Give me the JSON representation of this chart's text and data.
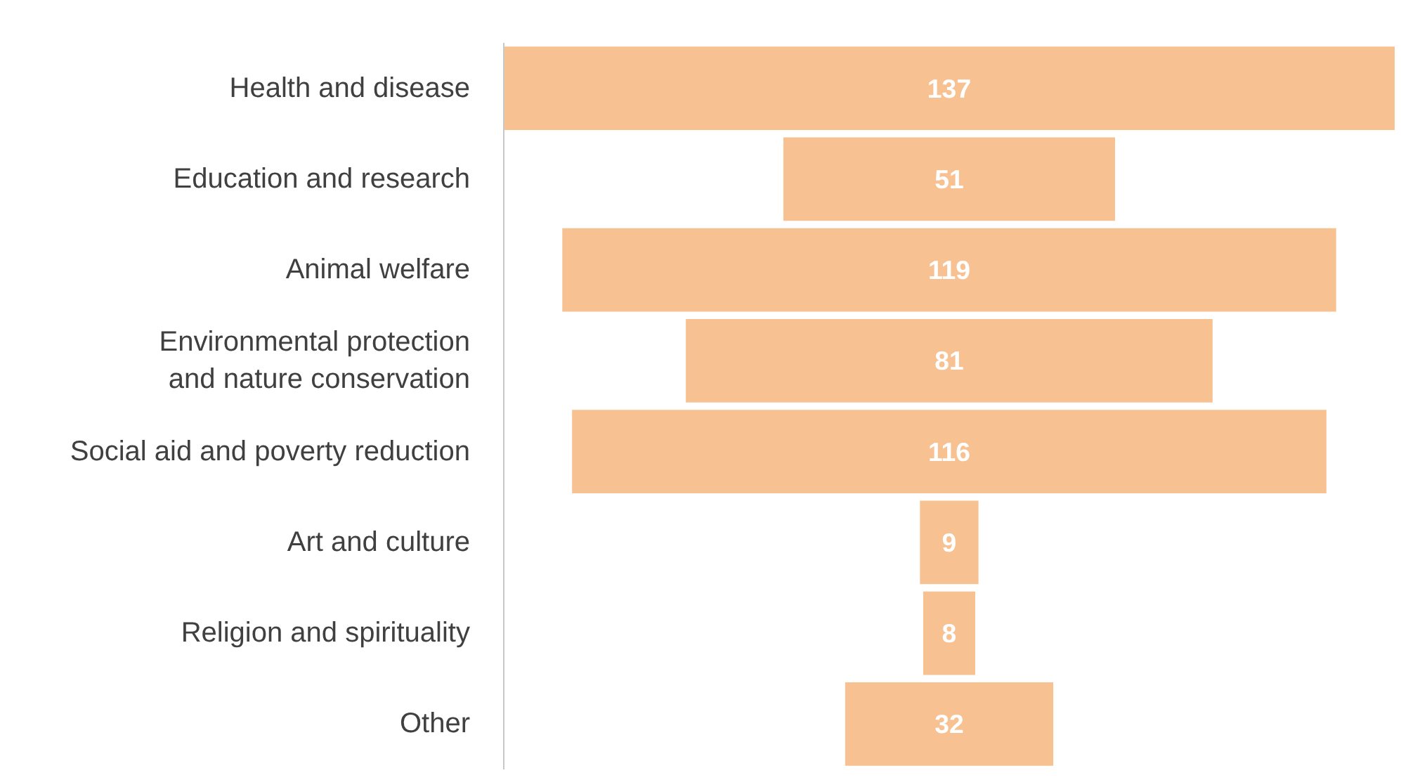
{
  "chart_data": {
    "type": "other",
    "categories": [
      "Health and disease",
      "Education and research",
      "Animal welfare",
      "Environmental protection\nand nature conservation",
      "Social aid and poverty reduction",
      "Art and culture",
      "Religion and spirituality",
      "Other"
    ],
    "values": [
      137,
      51,
      119,
      81,
      116,
      9,
      8,
      32
    ],
    "color": "#f8c192",
    "data_labels": true
  }
}
